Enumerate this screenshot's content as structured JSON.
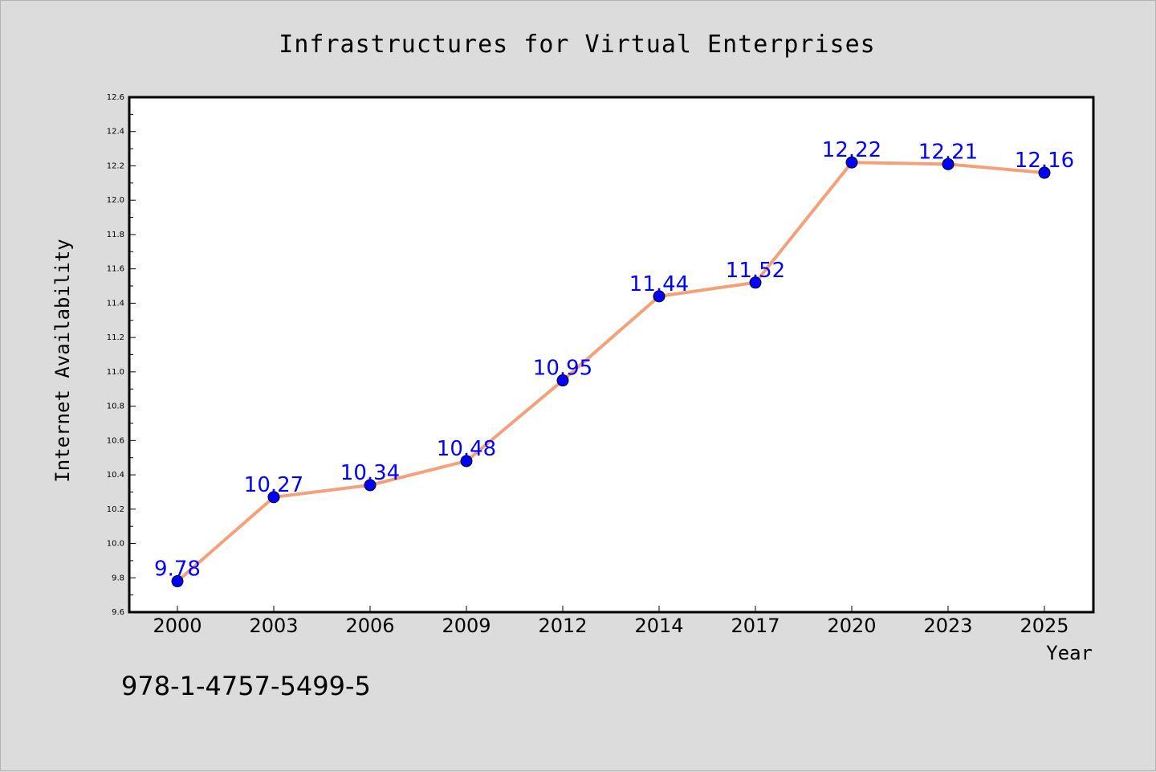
{
  "colors": {
    "background": "#dcdcdc",
    "plot_background": "#ffffff",
    "line": "#f4a07a",
    "marker": "#0000ff",
    "data_label": "#0000ff"
  },
  "footnote": "978-1-4757-5499-5",
  "chart_data": {
    "type": "line",
    "title": "Infrastructures for Virtual Enterprises",
    "xlabel": "Year",
    "ylabel": "Internet Availability",
    "categories": [
      "2000",
      "2003",
      "2006",
      "2009",
      "2012",
      "2014",
      "2017",
      "2020",
      "2023",
      "2025"
    ],
    "series": [
      {
        "values": [
          9.78,
          10.27,
          10.34,
          10.48,
          10.95,
          11.44,
          11.52,
          12.22,
          12.21,
          12.16
        ],
        "value_labels": [
          "9.78",
          "10.27",
          "10.34",
          "10.48",
          "10.95",
          "11.44",
          "11.52",
          "12.22",
          "12.21",
          "12.16"
        ]
      }
    ],
    "ylim": [
      9.6,
      12.6
    ],
    "ytick_labels": [
      "9.6",
      "9.8",
      "10.0",
      "10.2",
      "10.4",
      "10.6",
      "10.8",
      "11.0",
      "11.2",
      "11.4",
      "11.6",
      "11.8",
      "12.0",
      "12.2",
      "12.4",
      "12.6"
    ],
    "grid": false,
    "legend": "none",
    "markers": "filled-circle"
  }
}
